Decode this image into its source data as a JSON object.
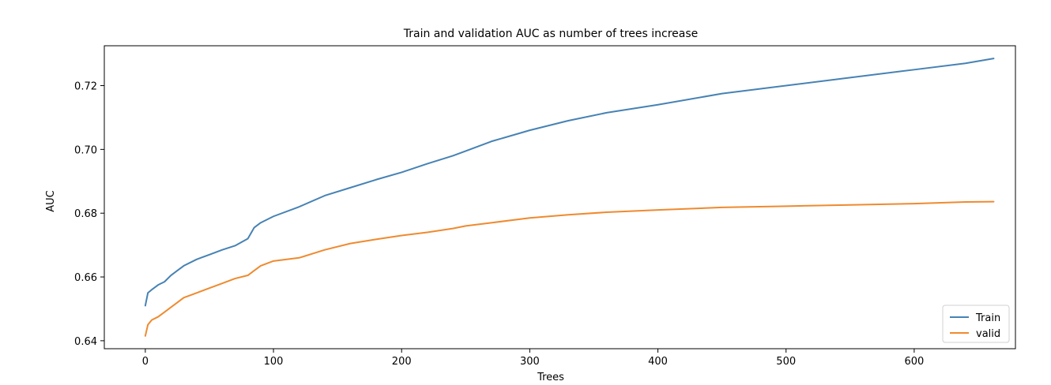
{
  "chart_data": {
    "type": "line",
    "title": "Train and validation AUC as number of trees increase",
    "xlabel": "Trees",
    "ylabel": "AUC",
    "xlim": [
      -32,
      679
    ],
    "ylim": [
      0.6375,
      0.7325
    ],
    "xticks": [
      0,
      100,
      200,
      300,
      400,
      500,
      600
    ],
    "yticks": [
      0.64,
      0.66,
      0.68,
      0.7,
      0.72
    ],
    "ytick_labels": [
      "0.64",
      "0.66",
      "0.68",
      "0.70",
      "0.72"
    ],
    "xtick_labels": [
      "0",
      "100",
      "200",
      "300",
      "400",
      "500",
      "600"
    ],
    "grid": false,
    "legend_placement": "bottom-right",
    "series": [
      {
        "name": "Train",
        "color": "#4682b4",
        "points": [
          [
            0,
            0.651
          ],
          [
            2,
            0.655
          ],
          [
            5,
            0.656
          ],
          [
            10,
            0.6575
          ],
          [
            15,
            0.6585
          ],
          [
            20,
            0.6605
          ],
          [
            25,
            0.662
          ],
          [
            30,
            0.6635
          ],
          [
            40,
            0.6655
          ],
          [
            50,
            0.667
          ],
          [
            60,
            0.6685
          ],
          [
            70,
            0.6698
          ],
          [
            80,
            0.672
          ],
          [
            85,
            0.6755
          ],
          [
            90,
            0.677
          ],
          [
            100,
            0.679
          ],
          [
            120,
            0.682
          ],
          [
            140,
            0.6855
          ],
          [
            160,
            0.688
          ],
          [
            180,
            0.6905
          ],
          [
            200,
            0.6928
          ],
          [
            220,
            0.6955
          ],
          [
            240,
            0.698
          ],
          [
            250,
            0.6995
          ],
          [
            270,
            0.7025
          ],
          [
            300,
            0.706
          ],
          [
            330,
            0.709
          ],
          [
            360,
            0.7115
          ],
          [
            400,
            0.714
          ],
          [
            450,
            0.7175
          ],
          [
            500,
            0.72
          ],
          [
            550,
            0.7225
          ],
          [
            600,
            0.725
          ],
          [
            640,
            0.727
          ],
          [
            662,
            0.7285
          ]
        ]
      },
      {
        "name": "valid",
        "color": "#ef8a2f",
        "points": [
          [
            0,
            0.6415
          ],
          [
            2,
            0.645
          ],
          [
            5,
            0.6465
          ],
          [
            10,
            0.6475
          ],
          [
            15,
            0.649
          ],
          [
            20,
            0.6505
          ],
          [
            25,
            0.652
          ],
          [
            30,
            0.6535
          ],
          [
            40,
            0.655
          ],
          [
            50,
            0.6565
          ],
          [
            60,
            0.658
          ],
          [
            70,
            0.6595
          ],
          [
            80,
            0.6605
          ],
          [
            85,
            0.662
          ],
          [
            90,
            0.6635
          ],
          [
            100,
            0.665
          ],
          [
            120,
            0.666
          ],
          [
            140,
            0.6685
          ],
          [
            160,
            0.6705
          ],
          [
            180,
            0.6718
          ],
          [
            200,
            0.673
          ],
          [
            220,
            0.674
          ],
          [
            240,
            0.6752
          ],
          [
            250,
            0.676
          ],
          [
            270,
            0.677
          ],
          [
            300,
            0.6785
          ],
          [
            330,
            0.6795
          ],
          [
            360,
            0.6803
          ],
          [
            400,
            0.681
          ],
          [
            450,
            0.6818
          ],
          [
            500,
            0.6822
          ],
          [
            550,
            0.6826
          ],
          [
            600,
            0.683
          ],
          [
            640,
            0.6835
          ],
          [
            662,
            0.6836
          ]
        ]
      }
    ]
  }
}
